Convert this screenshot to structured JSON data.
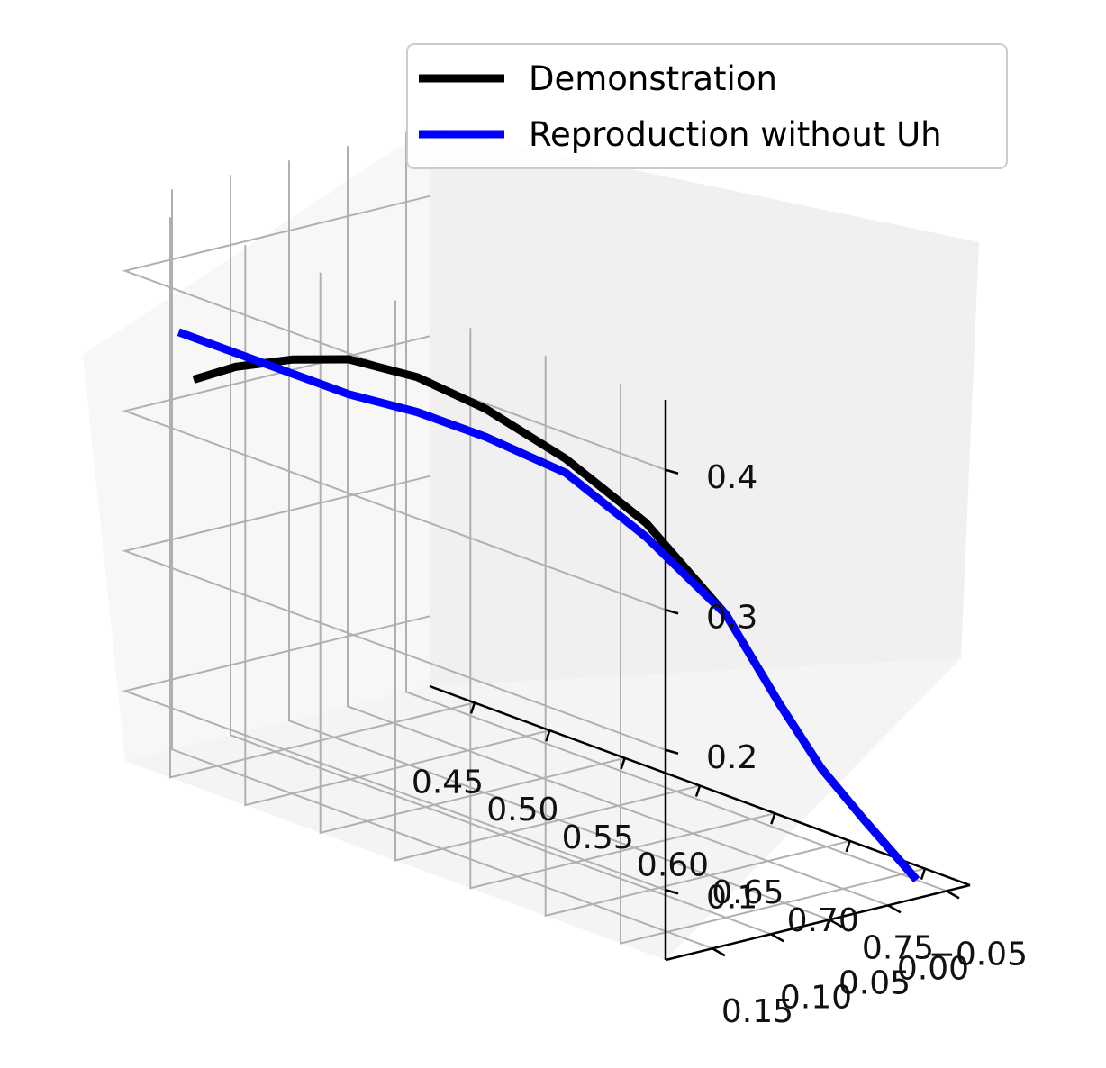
{
  "chart_data": {
    "type": "line",
    "projection": "3d",
    "title": "",
    "xlabel": "",
    "ylabel": "",
    "zlabel": "",
    "xlim": [
      0.42,
      0.78
    ],
    "ylim": [
      -0.07,
      0.19
    ],
    "zlim": [
      0.05,
      0.45
    ],
    "x_ticks": [
      "0.45",
      "0.50",
      "0.55",
      "0.60",
      "0.65",
      "0.70",
      "0.75"
    ],
    "y_ticks": [
      "−0.05",
      "0.00",
      "0.05",
      "0.10",
      "0.15"
    ],
    "z_ticks": [
      "0.1",
      "0.2",
      "0.3",
      "0.4"
    ],
    "grid": true,
    "legend_position": "upper right",
    "series": [
      {
        "name": "Demonstration",
        "color": "#000000",
        "x": [
          0.45,
          0.47,
          0.5,
          0.53,
          0.56,
          0.59,
          0.62,
          0.65,
          0.68,
          0.7,
          0.72,
          0.74,
          0.75,
          0.76
        ],
        "y": [
          0.17,
          0.16,
          0.15,
          0.14,
          0.12,
          0.1,
          0.07,
          0.04,
          0.01,
          -0.01,
          -0.02,
          -0.03,
          -0.04,
          -0.05
        ],
        "z": [
          0.33,
          0.345,
          0.36,
          0.37,
          0.365,
          0.35,
          0.32,
          0.28,
          0.22,
          0.16,
          0.12,
          0.09,
          0.07,
          0.05
        ]
      },
      {
        "name": "Reproduction without Uh",
        "color": "#0000ff",
        "x": [
          0.44,
          0.47,
          0.5,
          0.53,
          0.56,
          0.59,
          0.62,
          0.65,
          0.68,
          0.7,
          0.72,
          0.74,
          0.75,
          0.76
        ],
        "y": [
          0.17,
          0.16,
          0.15,
          0.14,
          0.12,
          0.1,
          0.07,
          0.04,
          0.01,
          -0.01,
          -0.02,
          -0.03,
          -0.04,
          -0.05
        ],
        "z": [
          0.36,
          0.355,
          0.35,
          0.345,
          0.34,
          0.33,
          0.31,
          0.27,
          0.22,
          0.16,
          0.12,
          0.09,
          0.07,
          0.05
        ]
      }
    ]
  }
}
